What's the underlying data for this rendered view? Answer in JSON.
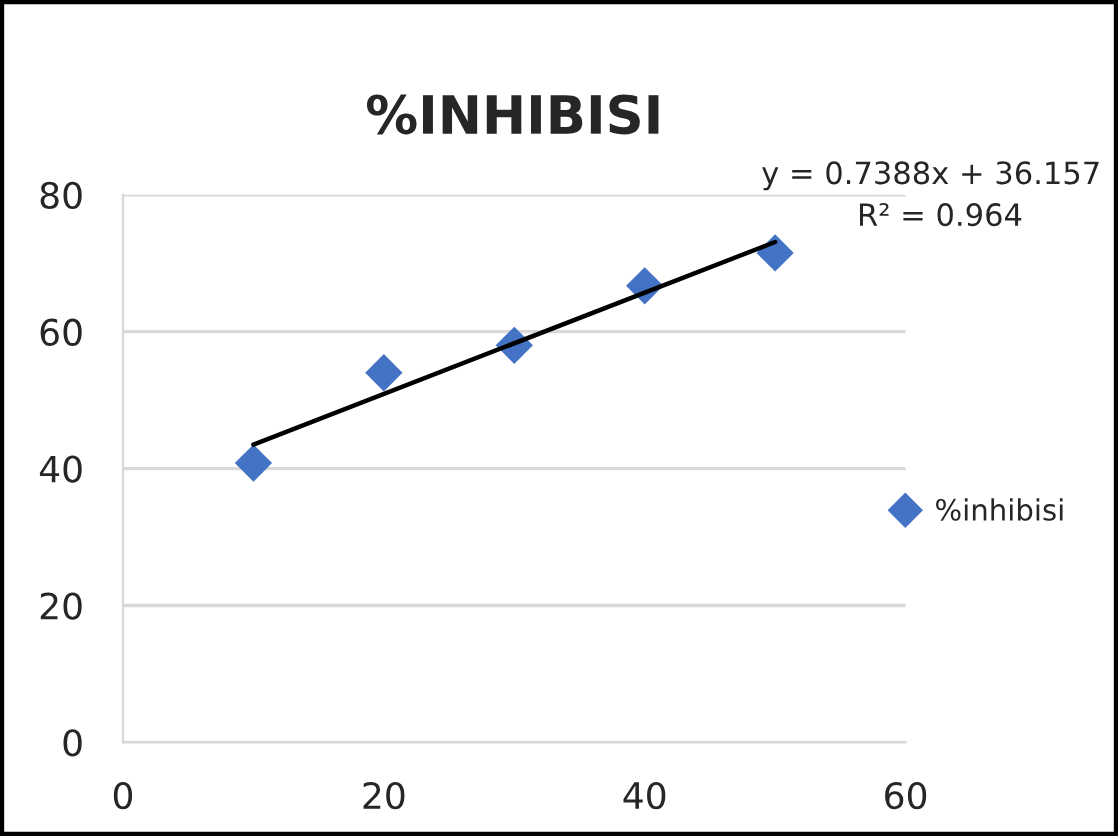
{
  "chart_data": {
    "type": "scatter",
    "title": "%INHIBISI",
    "series": [
      {
        "name": "%inhibisi",
        "color": "#4472c4",
        "marker": "diamond",
        "x": [
          10,
          20,
          30,
          40,
          50
        ],
        "values": [
          40.8,
          54.0,
          58.0,
          66.7,
          71.5
        ]
      },
      {
        "type": "line",
        "color": "#000000",
        "marker": "none",
        "line_style": "solid",
        "x": [
          10,
          50
        ],
        "values": [
          43.5,
          73.1
        ]
      }
    ],
    "annotations": [
      "y = 0.7388x + 36.157",
      "R² = 0.964"
    ],
    "xlim": [
      0,
      60
    ],
    "xticks": [
      0,
      20,
      40,
      60
    ],
    "ylim": [
      0,
      80
    ],
    "yticks": [
      0,
      20,
      40,
      60,
      80
    ],
    "grid": "y",
    "legend": "right"
  }
}
